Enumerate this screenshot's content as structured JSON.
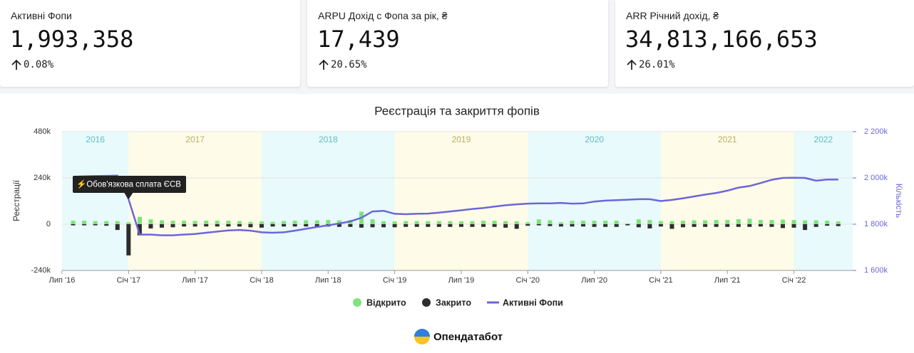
{
  "cards": [
    {
      "title": "Активні Фопи",
      "value": "1,993,358",
      "change": "0.08%"
    },
    {
      "title": "ARPU Дохід с Фопа за рік, ₴",
      "value": "17,439",
      "change": "20.65%"
    },
    {
      "title": "ARR Річний дохід, ₴",
      "value": "34,813,166,653",
      "change": "26.01%"
    }
  ],
  "chart_data": {
    "type": "combo",
    "title": "Реєстрація та закриття фопів",
    "y_label": "Реєстрації",
    "y2_label": "Кількість",
    "categories": [
      "Лип '16",
      null,
      null,
      null,
      null,
      null,
      "Січ '17",
      null,
      null,
      null,
      null,
      null,
      "Лип '17",
      null,
      null,
      null,
      null,
      null,
      "Січ '18",
      null,
      null,
      null,
      null,
      null,
      "Лип '18",
      null,
      null,
      null,
      null,
      null,
      "Січ '19",
      null,
      null,
      null,
      null,
      null,
      "Лип '19",
      null,
      null,
      null,
      null,
      null,
      "Січ '20",
      null,
      null,
      null,
      null,
      null,
      "Лип '20",
      null,
      null,
      null,
      null,
      null,
      "Січ '21",
      null,
      null,
      null,
      null,
      null,
      "Лип '21",
      null,
      null,
      null,
      null,
      null,
      "Січ '22",
      null,
      null,
      null,
      null
    ],
    "year_bands": [
      "2016",
      "2017",
      "2018",
      "2019",
      "2020",
      "2021",
      "2022"
    ],
    "annotations": [
      "⚡Обов'язкова сплата ЄСВ"
    ],
    "ylim": [
      -240000,
      480000
    ],
    "yticks": [
      {
        "value": -240000,
        "label": "-240k"
      },
      0,
      {
        "value": 240000,
        "label": "240k"
      },
      {
        "value": 480000,
        "label": "480k"
      }
    ],
    "y2lim": [
      1600000,
      2200000
    ],
    "y2ticks": [
      {
        "value": 1600000,
        "label": "1 600k"
      },
      {
        "value": 1800000,
        "label": "1 800k"
      },
      {
        "value": 2000000,
        "label": "2 000k"
      },
      {
        "value": 2200000,
        "label": "2 200k"
      }
    ],
    "grid": true,
    "legend": "bottom",
    "series": [
      {
        "name": "Відкрито",
        "type": "bar",
        "color": "#7ee37a",
        "values": [
          null,
          18000,
          18000,
          16000,
          16000,
          16000,
          10000,
          38000,
          25000,
          20000,
          18000,
          18000,
          17000,
          18000,
          18000,
          18000,
          16000,
          12000,
          14000,
          12000,
          16000,
          18000,
          20000,
          20000,
          22000,
          20000,
          22000,
          65000,
          25000,
          15000,
          14000,
          16000,
          16000,
          16000,
          16000,
          16000,
          15000,
          16000,
          18000,
          18000,
          16000,
          15000,
          10000,
          25000,
          20000,
          10000,
          18000,
          18000,
          18000,
          18000,
          18000,
          4000,
          25000,
          22000,
          16000,
          16000,
          18000,
          20000,
          20000,
          22000,
          22000,
          26000,
          28000,
          22000,
          22000,
          24000,
          22000,
          20000,
          20000,
          18000,
          14000
        ]
      },
      {
        "name": "Закрито",
        "type": "bar",
        "color": "#2d2d2d",
        "values": [
          null,
          -6000,
          -6000,
          -6000,
          -8000,
          -30000,
          -162000,
          -58000,
          -22000,
          -18000,
          -16000,
          -12000,
          -12000,
          -12000,
          -12000,
          -12000,
          -12000,
          -16000,
          -18000,
          -12000,
          -12000,
          -12000,
          -12000,
          -12000,
          -12000,
          -14000,
          -14000,
          -18000,
          -16000,
          -16000,
          -16000,
          -14000,
          -14000,
          -14000,
          -14000,
          -14000,
          -14000,
          -14000,
          -14000,
          -14000,
          -18000,
          -24000,
          -8000,
          -6000,
          -10000,
          -12000,
          -12000,
          -12000,
          -14000,
          -14000,
          -14000,
          -6000,
          -16000,
          -22000,
          -12000,
          -24000,
          -16000,
          -14000,
          -14000,
          -14000,
          -14000,
          -14000,
          -14000,
          -12000,
          -14000,
          -20000,
          -18000,
          -30000,
          -14000,
          -8000,
          -10000
        ]
      },
      {
        "name": "Активні Фопи",
        "type": "line",
        "axis": "y2",
        "color": "#6c66d9",
        "values": [
          null,
          2005000,
          2007000,
          2008000,
          2009000,
          2010000,
          1908000,
          1755000,
          1755000,
          1752000,
          1752000,
          1755000,
          1758000,
          1763000,
          1768000,
          1773000,
          1775000,
          1772000,
          1765000,
          1763000,
          1765000,
          1772000,
          1780000,
          1788000,
          1795000,
          1803000,
          1812000,
          1828000,
          1855000,
          1858000,
          1845000,
          1843000,
          1845000,
          1846000,
          1850000,
          1855000,
          1860000,
          1866000,
          1870000,
          1876000,
          1882000,
          1886000,
          1889000,
          1890000,
          1890000,
          1892000,
          1889000,
          1890000,
          1898000,
          1902000,
          1904000,
          1906000,
          1908000,
          1908000,
          1900000,
          1905000,
          1912000,
          1920000,
          1928000,
          1935000,
          1945000,
          1958000,
          1965000,
          1978000,
          1992000,
          2000000,
          2001000,
          2000000,
          1988000,
          1993000,
          1993000
        ]
      }
    ]
  },
  "footer": {
    "brand": "Опендатабот"
  }
}
